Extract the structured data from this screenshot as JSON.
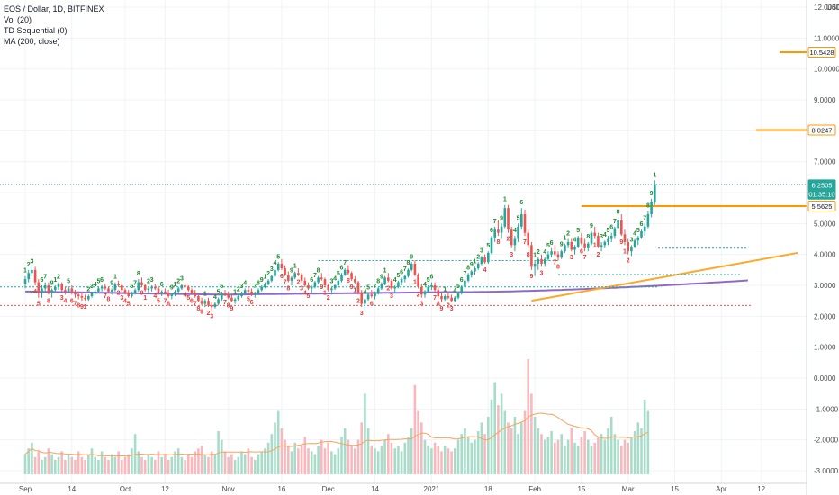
{
  "legend": {
    "symbol": "EOS / Dollar, 1D, BITFINEX",
    "vol": "Vol (20)",
    "td": "TD Sequential (0)",
    "ma": "MA (200, close)"
  },
  "chart_data": {
    "type": "candlestick",
    "y_axis": {
      "unit": "USD",
      "unit_label": "USD",
      "range": [
        -3.2,
        12.3
      ],
      "ticks": [
        "12.0000",
        "11.0000",
        "10.0000",
        "9.0000",
        "8.0000",
        "7.0000",
        "6.0000",
        "5.0000",
        "4.0000",
        "3.0000",
        "2.0000",
        "1.0000",
        "0.0000",
        "-1.0000",
        "-2.0000",
        "-3.0000"
      ],
      "tick_values": [
        12,
        11,
        10,
        9,
        8,
        7,
        6,
        5,
        4,
        3,
        2,
        1,
        0,
        -1,
        -2,
        -3
      ]
    },
    "x_axis": {
      "ticks": [
        "Sep",
        "14",
        "Oct",
        "12",
        "Nov",
        "16",
        "Dec",
        "14",
        "2021",
        "18",
        "Feb",
        "15",
        "Mar",
        "15",
        "Apr",
        "12"
      ],
      "tick_day_index": [
        0,
        14,
        30,
        42,
        61,
        77,
        91,
        105,
        122,
        139,
        153,
        167,
        181,
        195,
        209,
        221
      ]
    },
    "price_tags": [
      {
        "label": "10.5428",
        "value": 10.5428,
        "color": "#ff9800"
      },
      {
        "label": "8.0247",
        "value": 8.0247,
        "color": "#ff9800"
      },
      {
        "label": "6.2505",
        "value": 6.2505,
        "color": "#26a69a"
      },
      {
        "label": "01:35:10",
        "value": 5.95,
        "color": "#26a69a"
      },
      {
        "label": "5.5625",
        "value": 5.5625,
        "color": "#ff9800"
      }
    ],
    "candles_note": "daily OHLC approximated from chart, Sep 2020 to Apr 2021",
    "candles": [
      [
        3.05,
        3.3,
        2.9,
        3.2
      ],
      [
        3.2,
        3.5,
        3.1,
        3.4
      ],
      [
        3.4,
        3.6,
        3.3,
        3.5
      ],
      [
        3.5,
        3.6,
        3.0,
        3.1
      ],
      [
        3.1,
        3.2,
        2.6,
        2.8
      ],
      [
        2.8,
        3.0,
        2.6,
        2.9
      ],
      [
        2.9,
        3.1,
        2.8,
        3.0
      ],
      [
        3.0,
        3.1,
        2.7,
        2.75
      ],
      [
        2.75,
        2.9,
        2.6,
        2.85
      ],
      [
        2.85,
        3.0,
        2.8,
        2.95
      ],
      [
        2.95,
        3.1,
        2.85,
        3.05
      ],
      [
        3.05,
        3.1,
        2.8,
        2.85
      ],
      [
        2.85,
        2.95,
        2.7,
        2.8
      ],
      [
        2.8,
        2.95,
        2.75,
        2.9
      ],
      [
        2.9,
        3.0,
        2.7,
        2.75
      ],
      [
        2.75,
        2.85,
        2.6,
        2.7
      ],
      [
        2.7,
        2.8,
        2.55,
        2.65
      ],
      [
        2.65,
        2.75,
        2.5,
        2.6
      ],
      [
        2.6,
        2.7,
        2.5,
        2.55
      ],
      [
        2.55,
        2.7,
        2.5,
        2.65
      ],
      [
        2.65,
        2.8,
        2.6,
        2.75
      ],
      [
        2.75,
        2.85,
        2.7,
        2.8
      ],
      [
        2.8,
        2.95,
        2.75,
        2.9
      ],
      [
        2.9,
        3.0,
        2.8,
        2.95
      ],
      [
        2.95,
        3.05,
        2.85,
        2.9
      ],
      [
        2.9,
        2.95,
        2.75,
        2.8
      ],
      [
        2.8,
        2.9,
        2.7,
        2.85
      ],
      [
        2.85,
        3.1,
        2.8,
        3.05
      ],
      [
        3.05,
        3.15,
        2.95,
        3.0
      ],
      [
        3.0,
        3.05,
        2.8,
        2.85
      ],
      [
        2.85,
        2.9,
        2.7,
        2.75
      ],
      [
        2.75,
        2.85,
        2.6,
        2.65
      ],
      [
        2.65,
        2.8,
        2.6,
        2.75
      ],
      [
        2.75,
        2.9,
        2.7,
        2.85
      ],
      [
        2.85,
        3.2,
        2.8,
        3.1
      ],
      [
        3.1,
        3.25,
        2.95,
        3.0
      ],
      [
        3.0,
        3.05,
        2.8,
        2.85
      ],
      [
        2.85,
        2.95,
        2.75,
        2.9
      ],
      [
        2.9,
        3.0,
        2.8,
        2.95
      ],
      [
        2.95,
        3.05,
        2.85,
        2.9
      ],
      [
        2.9,
        2.95,
        2.7,
        2.75
      ],
      [
        2.75,
        2.85,
        2.65,
        2.8
      ],
      [
        2.8,
        2.9,
        2.7,
        2.75
      ],
      [
        2.75,
        2.85,
        2.6,
        2.65
      ],
      [
        2.65,
        2.75,
        2.55,
        2.7
      ],
      [
        2.7,
        2.85,
        2.65,
        2.8
      ],
      [
        2.8,
        2.95,
        2.75,
        2.9
      ],
      [
        2.9,
        3.05,
        2.85,
        3.0
      ],
      [
        3.0,
        3.1,
        2.9,
        2.95
      ],
      [
        2.95,
        3.0,
        2.8,
        2.85
      ],
      [
        2.85,
        2.9,
        2.7,
        2.75
      ],
      [
        2.75,
        2.85,
        2.6,
        2.65
      ],
      [
        2.65,
        2.7,
        2.45,
        2.5
      ],
      [
        2.5,
        2.6,
        2.35,
        2.4
      ],
      [
        2.4,
        2.55,
        2.3,
        2.5
      ],
      [
        2.5,
        2.6,
        2.3,
        2.35
      ],
      [
        2.35,
        2.45,
        2.2,
        2.3
      ],
      [
        2.3,
        2.45,
        2.25,
        2.4
      ],
      [
        2.4,
        2.6,
        2.35,
        2.55
      ],
      [
        2.55,
        2.8,
        2.5,
        2.75
      ],
      [
        2.75,
        2.85,
        2.65,
        2.7
      ],
      [
        2.7,
        2.8,
        2.55,
        2.6
      ],
      [
        2.6,
        2.7,
        2.45,
        2.5
      ],
      [
        2.5,
        2.6,
        2.4,
        2.55
      ],
      [
        2.55,
        2.7,
        2.5,
        2.65
      ],
      [
        2.65,
        2.8,
        2.6,
        2.75
      ],
      [
        2.75,
        2.9,
        2.7,
        2.85
      ],
      [
        2.85,
        2.95,
        2.75,
        2.8
      ],
      [
        2.8,
        2.9,
        2.65,
        2.7
      ],
      [
        2.7,
        2.8,
        2.6,
        2.75
      ],
      [
        2.75,
        2.9,
        2.7,
        2.85
      ],
      [
        2.85,
        3.0,
        2.8,
        2.95
      ],
      [
        2.95,
        3.1,
        2.9,
        3.05
      ],
      [
        3.05,
        3.2,
        3.0,
        3.15
      ],
      [
        3.15,
        3.35,
        3.1,
        3.3
      ],
      [
        3.3,
        3.55,
        3.25,
        3.5
      ],
      [
        3.5,
        3.75,
        3.45,
        3.7
      ],
      [
        3.7,
        3.85,
        3.5,
        3.55
      ],
      [
        3.55,
        3.65,
        3.3,
        3.35
      ],
      [
        3.35,
        3.45,
        3.1,
        3.15
      ],
      [
        3.15,
        3.3,
        3.0,
        3.25
      ],
      [
        3.25,
        3.45,
        3.2,
        3.4
      ],
      [
        3.4,
        3.55,
        3.3,
        3.35
      ],
      [
        3.35,
        3.4,
        3.1,
        3.15
      ],
      [
        3.15,
        3.25,
        2.95,
        3.0
      ],
      [
        3.0,
        3.1,
        2.85,
        2.9
      ],
      [
        2.9,
        3.0,
        2.75,
        2.95
      ],
      [
        2.95,
        3.15,
        2.9,
        3.1
      ],
      [
        3.1,
        3.3,
        3.05,
        3.25
      ],
      [
        3.25,
        3.4,
        3.15,
        3.2
      ],
      [
        3.2,
        3.25,
        2.95,
        3.0
      ],
      [
        3.0,
        3.05,
        2.8,
        2.85
      ],
      [
        2.85,
        2.95,
        2.7,
        2.9
      ],
      [
        2.9,
        3.05,
        2.85,
        3.0
      ],
      [
        3.0,
        3.2,
        2.95,
        3.15
      ],
      [
        3.15,
        3.4,
        3.1,
        3.35
      ],
      [
        3.35,
        3.55,
        3.3,
        3.5
      ],
      [
        3.5,
        3.65,
        3.35,
        3.4
      ],
      [
        3.4,
        3.45,
        3.15,
        3.2
      ],
      [
        3.2,
        3.3,
        3.05,
        3.1
      ],
      [
        3.1,
        3.15,
        2.7,
        2.75
      ],
      [
        2.75,
        2.85,
        2.3,
        2.4
      ],
      [
        2.4,
        2.6,
        2.2,
        2.55
      ],
      [
        2.55,
        2.75,
        2.5,
        2.7
      ],
      [
        2.7,
        2.85,
        2.6,
        2.65
      ],
      [
        2.65,
        2.8,
        2.55,
        2.75
      ],
      [
        2.75,
        2.95,
        2.7,
        2.9
      ],
      [
        2.9,
        3.1,
        2.85,
        3.05
      ],
      [
        3.05,
        3.3,
        3.0,
        3.25
      ],
      [
        3.25,
        3.4,
        3.1,
        3.15
      ],
      [
        3.15,
        3.2,
        2.85,
        2.9
      ],
      [
        2.9,
        3.0,
        2.75,
        2.95
      ],
      [
        2.95,
        3.15,
        2.9,
        3.1
      ],
      [
        3.1,
        3.25,
        3.0,
        3.2
      ],
      [
        3.2,
        3.35,
        3.1,
        3.3
      ],
      [
        3.3,
        3.55,
        3.25,
        3.5
      ],
      [
        3.5,
        3.75,
        3.45,
        3.7
      ],
      [
        3.7,
        3.8,
        3.3,
        3.35
      ],
      [
        3.35,
        3.4,
        2.9,
        2.95
      ],
      [
        2.95,
        3.05,
        2.6,
        2.7
      ],
      [
        2.7,
        2.85,
        2.6,
        2.8
      ],
      [
        2.8,
        3.0,
        2.75,
        2.95
      ],
      [
        2.95,
        3.1,
        2.85,
        3.0
      ],
      [
        3.0,
        3.1,
        2.8,
        2.85
      ],
      [
        2.85,
        2.95,
        2.6,
        2.65
      ],
      [
        2.65,
        2.75,
        2.45,
        2.55
      ],
      [
        2.55,
        2.7,
        2.5,
        2.65
      ],
      [
        2.65,
        2.8,
        2.55,
        2.6
      ],
      [
        2.6,
        2.7,
        2.45,
        2.5
      ],
      [
        2.5,
        2.65,
        2.45,
        2.6
      ],
      [
        2.6,
        2.8,
        2.55,
        2.75
      ],
      [
        2.75,
        3.0,
        2.7,
        2.95
      ],
      [
        2.95,
        3.2,
        2.9,
        3.15
      ],
      [
        3.15,
        3.4,
        3.1,
        3.35
      ],
      [
        3.35,
        3.5,
        3.25,
        3.45
      ],
      [
        3.45,
        3.6,
        3.35,
        3.55
      ],
      [
        3.55,
        3.75,
        3.5,
        3.7
      ],
      [
        3.7,
        3.95,
        3.65,
        3.9
      ],
      [
        3.9,
        4.0,
        3.7,
        3.75
      ],
      [
        3.75,
        4.1,
        3.7,
        4.05
      ],
      [
        4.05,
        4.6,
        4.0,
        4.55
      ],
      [
        4.55,
        4.9,
        4.4,
        4.8
      ],
      [
        4.8,
        5.1,
        4.6,
        4.7
      ],
      [
        4.7,
        5.0,
        4.5,
        4.9
      ],
      [
        4.9,
        5.6,
        4.85,
        5.5
      ],
      [
        5.5,
        5.6,
        4.7,
        4.8
      ],
      [
        4.8,
        4.9,
        4.2,
        4.3
      ],
      [
        4.3,
        4.6,
        4.1,
        4.5
      ],
      [
        4.5,
        5.0,
        4.4,
        4.9
      ],
      [
        4.9,
        5.5,
        4.8,
        5.3
      ],
      [
        5.3,
        5.45,
        4.6,
        4.7
      ],
      [
        4.7,
        4.8,
        4.2,
        4.3
      ],
      [
        4.3,
        4.4,
        3.5,
        3.6
      ],
      [
        3.6,
        3.8,
        3.3,
        3.7
      ],
      [
        3.7,
        3.9,
        3.5,
        3.85
      ],
      [
        3.85,
        4.0,
        3.6,
        3.7
      ],
      [
        3.7,
        3.9,
        3.6,
        3.85
      ],
      [
        3.85,
        4.1,
        3.8,
        4.0
      ],
      [
        4.0,
        4.2,
        3.9,
        4.1
      ],
      [
        4.1,
        4.3,
        3.95,
        4.0
      ],
      [
        4.0,
        4.1,
        3.8,
        3.9
      ],
      [
        3.9,
        4.15,
        3.85,
        4.1
      ],
      [
        4.1,
        4.35,
        4.05,
        4.3
      ],
      [
        4.3,
        4.5,
        4.2,
        4.4
      ],
      [
        4.4,
        4.5,
        4.1,
        4.15
      ],
      [
        4.15,
        4.3,
        4.0,
        4.25
      ],
      [
        4.25,
        4.6,
        4.2,
        4.55
      ],
      [
        4.55,
        4.7,
        4.3,
        4.35
      ],
      [
        4.35,
        4.5,
        4.1,
        4.2
      ],
      [
        4.2,
        4.4,
        4.1,
        4.35
      ],
      [
        4.35,
        4.75,
        4.3,
        4.7
      ],
      [
        4.7,
        4.9,
        4.5,
        4.6
      ],
      [
        4.6,
        4.7,
        4.2,
        4.25
      ],
      [
        4.25,
        4.4,
        4.1,
        4.3
      ],
      [
        4.3,
        4.45,
        4.2,
        4.4
      ],
      [
        4.4,
        4.6,
        4.3,
        4.5
      ],
      [
        4.5,
        4.7,
        4.4,
        4.6
      ],
      [
        4.6,
        4.9,
        4.5,
        4.85
      ],
      [
        4.85,
        5.2,
        4.8,
        5.1
      ],
      [
        5.1,
        5.3,
        4.6,
        4.65
      ],
      [
        4.65,
        4.8,
        4.3,
        4.4
      ],
      [
        4.4,
        4.5,
        4.0,
        4.1
      ],
      [
        4.1,
        4.3,
        3.95,
        4.25
      ],
      [
        4.25,
        4.5,
        4.2,
        4.45
      ],
      [
        4.45,
        4.6,
        4.3,
        4.55
      ],
      [
        4.55,
        4.8,
        4.5,
        4.75
      ],
      [
        4.75,
        5.0,
        4.6,
        4.9
      ],
      [
        4.9,
        5.4,
        4.85,
        5.3
      ],
      [
        5.3,
        5.8,
        5.2,
        5.7
      ],
      [
        5.7,
        6.4,
        5.6,
        6.25
      ]
    ],
    "volume": [
      0.7,
      0.9,
      1.1,
      0.6,
      0.8,
      0.5,
      0.6,
      0.9,
      0.7,
      0.5,
      0.6,
      0.8,
      0.5,
      0.7,
      0.6,
      0.5,
      0.8,
      0.6,
      0.5,
      0.7,
      0.9,
      0.6,
      0.5,
      0.8,
      0.6,
      0.5,
      0.7,
      0.6,
      0.8,
      0.5,
      0.6,
      0.7,
      0.9,
      1.4,
      0.8,
      0.6,
      0.5,
      0.7,
      0.6,
      0.5,
      0.8,
      0.6,
      0.7,
      0.5,
      0.6,
      0.8,
      0.9,
      0.6,
      0.5,
      0.7,
      0.6,
      0.8,
      0.9,
      1.0,
      0.7,
      0.6,
      0.8,
      0.7,
      1.5,
      1.2,
      0.8,
      0.6,
      0.7,
      0.5,
      0.6,
      0.8,
      0.7,
      0.9,
      0.6,
      0.5,
      0.7,
      0.8,
      0.9,
      1.1,
      1.4,
      1.8,
      2.2,
      1.6,
      1.2,
      1.0,
      0.8,
      1.1,
      0.9,
      1.0,
      1.3,
      0.9,
      0.8,
      0.7,
      1.0,
      1.2,
      0.9,
      1.1,
      0.8,
      0.7,
      0.9,
      1.3,
      1.6,
      1.2,
      1.0,
      0.9,
      1.2,
      1.8,
      2.8,
      1.6,
      1.0,
      0.9,
      0.8,
      1.0,
      1.2,
      1.4,
      1.1,
      0.9,
      1.0,
      0.8,
      1.1,
      1.3,
      1.6,
      3.1,
      2.2,
      1.8,
      1.2,
      1.0,
      0.9,
      1.1,
      1.0,
      0.8,
      1.0,
      0.9,
      0.8,
      0.9,
      1.2,
      1.4,
      1.6,
      1.3,
      1.1,
      1.2,
      1.5,
      1.8,
      1.4,
      2.0,
      2.6,
      3.2,
      2.4,
      2.8,
      2.2,
      1.8,
      1.6,
      2.0,
      1.4,
      1.8,
      2.2,
      4.0,
      2.8,
      2.0,
      1.6,
      1.4,
      1.2,
      1.3,
      1.5,
      1.1,
      1.2,
      1.4,
      1.0,
      1.2,
      1.6,
      1.1,
      1.0,
      1.3,
      1.5,
      1.2,
      1.0,
      1.1,
      1.3,
      1.4,
      1.2,
      1.6,
      2.0,
      1.4,
      1.2,
      1.0,
      1.2,
      1.1,
      1.3,
      1.5,
      1.8,
      1.6,
      2.6,
      2.2
    ]
  }
}
